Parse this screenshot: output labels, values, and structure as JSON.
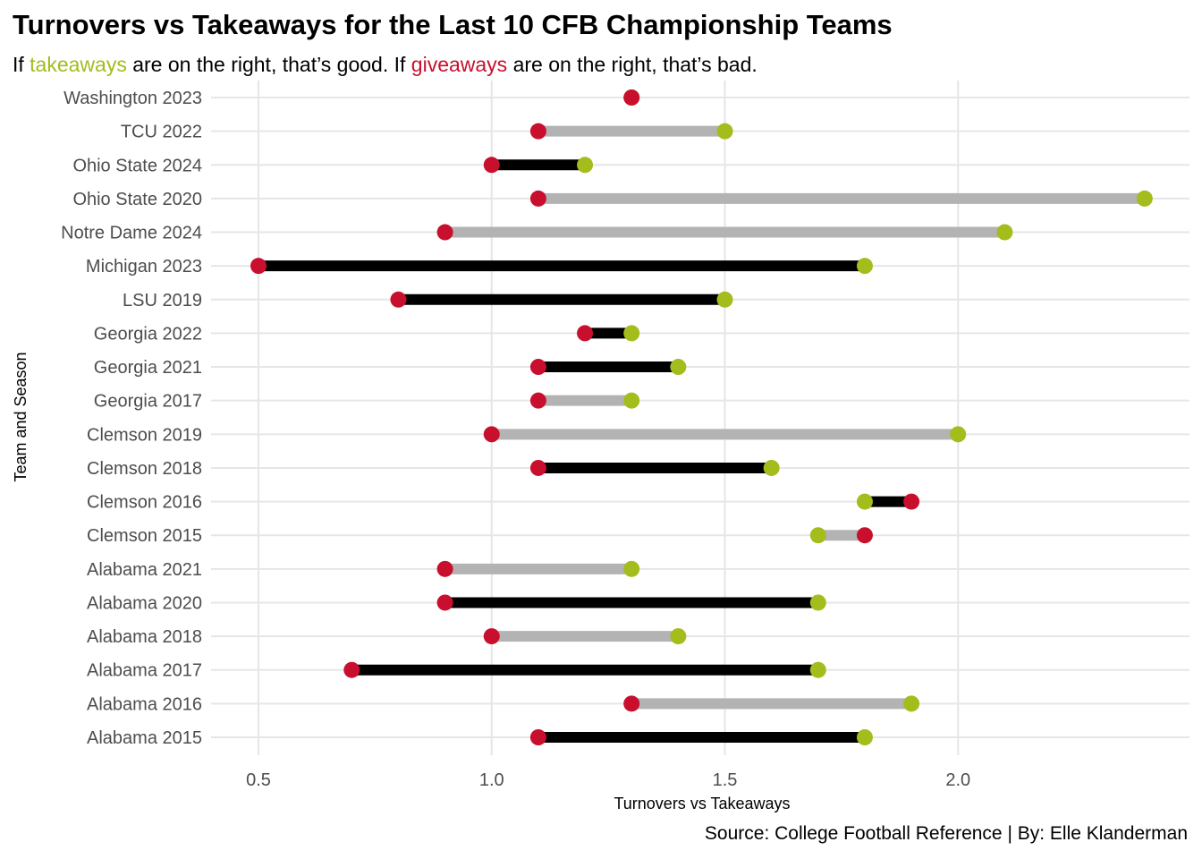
{
  "chart_data": {
    "type": "dumbbell",
    "title": "Turnovers vs Takeaways for the Last 10 CFB Championship Teams",
    "subtitle": {
      "part1": "If ",
      "takeaways_word": "takeaways",
      "part2": " are on the right, that’s good. If ",
      "giveaways_word": "giveaways",
      "part3": " are on the right, that’s bad."
    },
    "xlabel": "Turnovers vs Takeaways",
    "ylabel": "Team and Season",
    "caption": "Source: College Football Reference | By: Elle Klanderman",
    "xlim": [
      0.4,
      2.5
    ],
    "x_ticks": [
      0.5,
      1.0,
      1.5,
      2.0
    ],
    "x_tick_labels": [
      "0.5",
      "1.0",
      "1.5",
      "2.0"
    ],
    "grid": true,
    "colors": {
      "takeaways": "#a4bc1c",
      "giveaways": "#c8102e",
      "segment_black": "#000000",
      "segment_gray": "#b3b3b3"
    },
    "categories": [
      "Alabama 2015",
      "Alabama 2016",
      "Alabama 2017",
      "Alabama 2018",
      "Alabama 2020",
      "Alabama 2021",
      "Clemson 2015",
      "Clemson 2016",
      "Clemson 2018",
      "Clemson 2019",
      "Georgia 2017",
      "Georgia 2021",
      "Georgia 2022",
      "LSU 2019",
      "Michigan 2023",
      "Notre Dame 2024",
      "Ohio State 2020",
      "Ohio State 2024",
      "TCU 2022",
      "Washington 2023"
    ],
    "series": [
      {
        "name": "giveaways",
        "values": [
          1.1,
          1.3,
          0.7,
          1.0,
          0.9,
          0.9,
          1.8,
          1.9,
          1.1,
          1.0,
          1.1,
          1.1,
          1.2,
          0.8,
          0.5,
          0.9,
          1.1,
          1.0,
          1.1,
          1.3
        ]
      },
      {
        "name": "takeaways",
        "values": [
          1.8,
          1.9,
          1.7,
          1.4,
          1.7,
          1.3,
          1.7,
          1.8,
          1.6,
          2.0,
          1.3,
          1.4,
          1.3,
          1.5,
          1.8,
          2.1,
          2.4,
          1.2,
          1.5,
          1.3
        ]
      }
    ],
    "segment_color": [
      "black",
      "gray",
      "black",
      "gray",
      "black",
      "gray",
      "gray",
      "black",
      "black",
      "gray",
      "gray",
      "black",
      "black",
      "black",
      "black",
      "gray",
      "gray",
      "black",
      "gray",
      "black"
    ]
  }
}
